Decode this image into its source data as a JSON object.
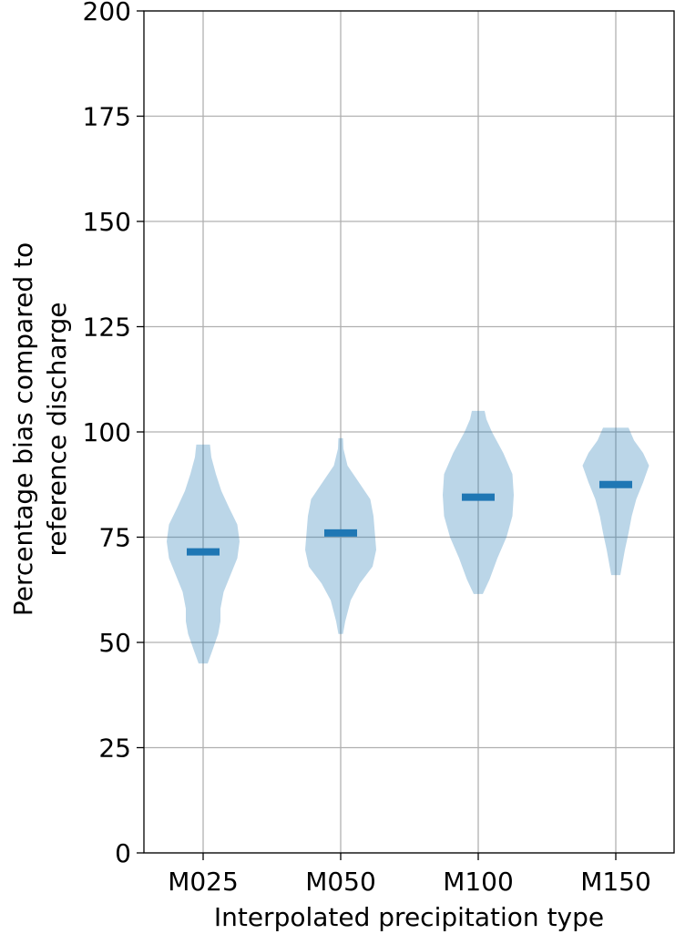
{
  "chart_data": {
    "type": "violin",
    "title": "",
    "xlabel": "Interpolated precipitation type",
    "ylabel_lines": [
      "Percentage bias compared to",
      "reference discharge"
    ],
    "categories": [
      "M025",
      "M050",
      "M100",
      "M150"
    ],
    "ylim": [
      0,
      200
    ],
    "yticks": [
      0,
      25,
      50,
      75,
      100,
      125,
      150,
      175,
      200
    ],
    "grid": true,
    "legend": "none",
    "colors": {
      "body": "#1f77b4",
      "median": "#1f77b4",
      "grid": "#b0b0b0"
    },
    "series": [
      {
        "category": "M025",
        "min": 45,
        "max": 97,
        "median": 71.5,
        "profile": [
          [
            45,
            0.1
          ],
          [
            48,
            0.2
          ],
          [
            52,
            0.33
          ],
          [
            55,
            0.38
          ],
          [
            58,
            0.38
          ],
          [
            62,
            0.45
          ],
          [
            66,
            0.6
          ],
          [
            70,
            0.75
          ],
          [
            74,
            0.8
          ],
          [
            78,
            0.75
          ],
          [
            82,
            0.57
          ],
          [
            86,
            0.4
          ],
          [
            90,
            0.28
          ],
          [
            94,
            0.18
          ],
          [
            97,
            0.15
          ]
        ]
      },
      {
        "category": "M050",
        "min": 52,
        "max": 98.5,
        "median": 76,
        "profile": [
          [
            52,
            0.05
          ],
          [
            55,
            0.1
          ],
          [
            60,
            0.22
          ],
          [
            64,
            0.42
          ],
          [
            68,
            0.7
          ],
          [
            72,
            0.78
          ],
          [
            76,
            0.75
          ],
          [
            80,
            0.72
          ],
          [
            84,
            0.65
          ],
          [
            88,
            0.4
          ],
          [
            92,
            0.15
          ],
          [
            96,
            0.06
          ],
          [
            98.5,
            0.05
          ]
        ]
      },
      {
        "category": "M100",
        "min": 61.5,
        "max": 105,
        "median": 84.5,
        "profile": [
          [
            61.5,
            0.1
          ],
          [
            65,
            0.25
          ],
          [
            70,
            0.42
          ],
          [
            75,
            0.62
          ],
          [
            80,
            0.75
          ],
          [
            85,
            0.78
          ],
          [
            90,
            0.75
          ],
          [
            95,
            0.55
          ],
          [
            100,
            0.3
          ],
          [
            103,
            0.18
          ],
          [
            105,
            0.14
          ]
        ]
      },
      {
        "category": "M150",
        "min": 66,
        "max": 101,
        "median": 87.5,
        "profile": [
          [
            66,
            0.1
          ],
          [
            69,
            0.15
          ],
          [
            72,
            0.2
          ],
          [
            76,
            0.28
          ],
          [
            80,
            0.35
          ],
          [
            84,
            0.45
          ],
          [
            88,
            0.6
          ],
          [
            92,
            0.73
          ],
          [
            95,
            0.6
          ],
          [
            98,
            0.4
          ],
          [
            101,
            0.28
          ]
        ]
      }
    ]
  }
}
